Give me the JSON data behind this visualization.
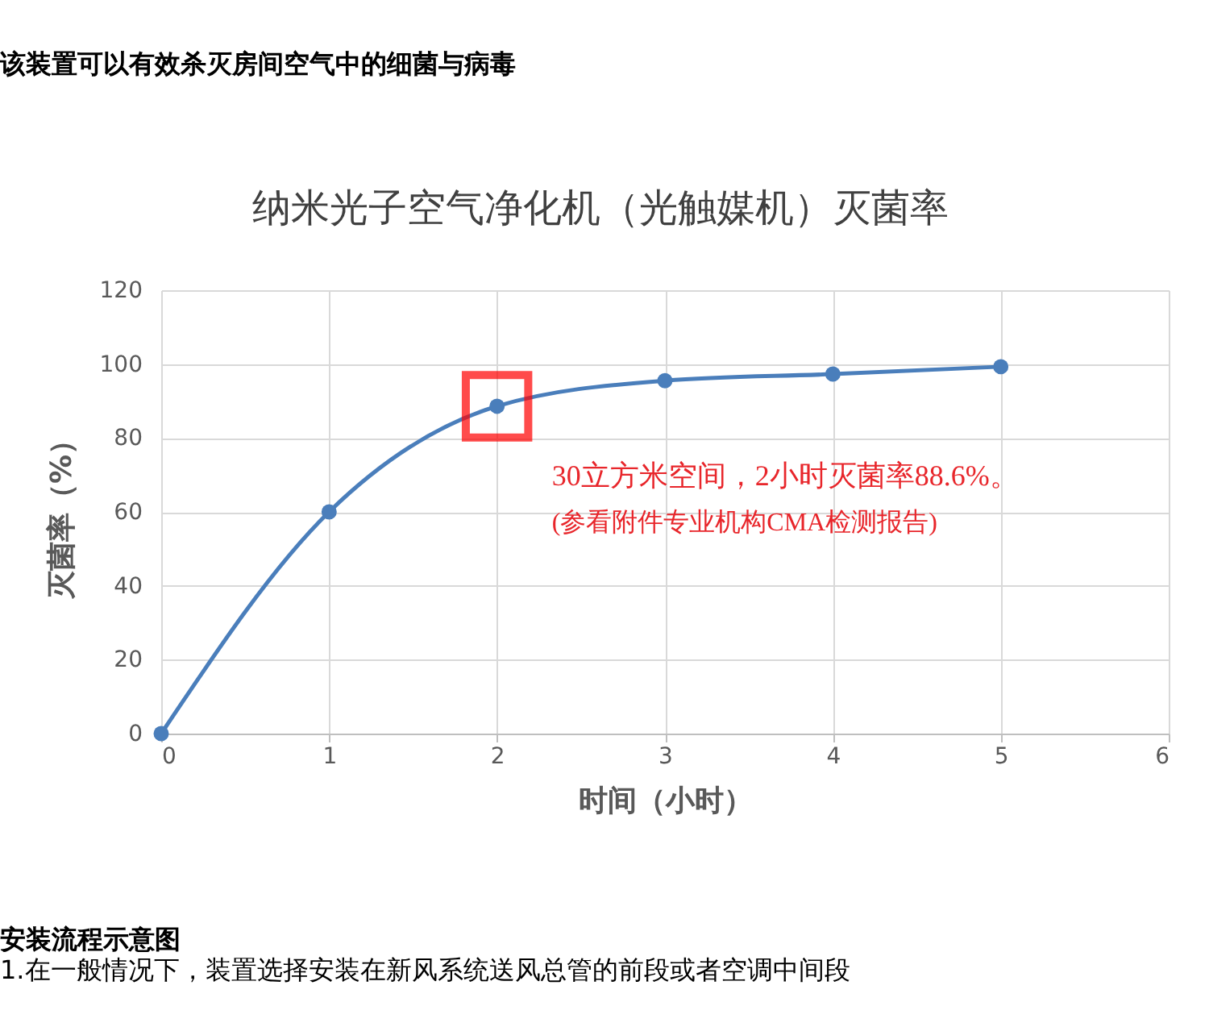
{
  "chart_data": {
    "type": "line",
    "title": "纳米光子空气净化机（光触媒机）灭菌率",
    "subtitle": "该装置可以有效杀灭房间空气中的细菌与病毒",
    "xlabel": "时间（小时）",
    "ylabel": "灭菌率（%）",
    "x": [
      0,
      1,
      2,
      3,
      4,
      5
    ],
    "series": [
      {
        "color": "#4a7ebb",
        "values": [
          0,
          60,
          88.6,
          95.5,
          97.3,
          99.3
        ]
      }
    ],
    "xlim": [
      0,
      6
    ],
    "xticks": [
      0,
      1,
      2,
      3,
      4,
      5,
      6
    ],
    "ylim": [
      0,
      120
    ],
    "yticks": [
      0,
      20,
      40,
      60,
      80,
      100,
      120
    ],
    "grid": true,
    "marker": "circle",
    "line_style": "solid",
    "annotations": [
      {
        "text": "30立方米空间，2小时灭菌率88.6%。\n(参看附件专业机构CMA检测报告)",
        "x": 2,
        "y": 88.6
      },
      "安装流程示意图",
      "1.在一般情况下，装置选择安装在新风系统送风总管的前段或者空调中间段"
    ]
  }
}
